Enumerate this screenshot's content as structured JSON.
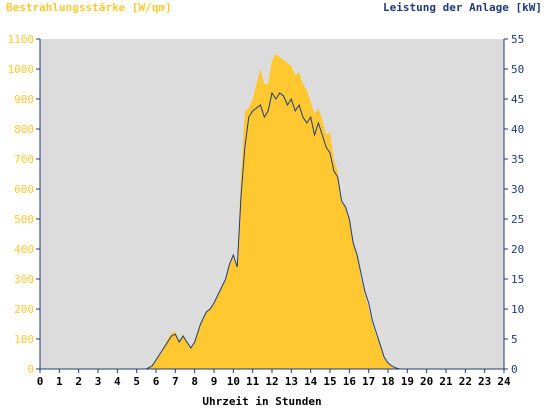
{
  "colors": {
    "irradiance": "#ffc830",
    "power": "#1f3a7a",
    "plot_bg": "#dcdcdc",
    "axis": "#1f3a7a",
    "left_label": "#ffc830",
    "right_label": "#1f3a7a",
    "x_label": "#000000"
  },
  "chart_data": {
    "type": "area",
    "title": "",
    "left_axis_title": "Bestrahlungsstärke [W/qm]",
    "right_axis_title": "Leistung der Anlage [kW]",
    "xlabel": "Uhrzeit in Stunden",
    "xlim": [
      0,
      24
    ],
    "ylim_left": [
      0,
      1100
    ],
    "ylim_right": [
      0,
      55
    ],
    "x_ticks": [
      "0",
      "1",
      "2",
      "3",
      "4",
      "5",
      "6",
      "7",
      "8",
      "9",
      "10",
      "11",
      "12",
      "13",
      "14",
      "15",
      "16",
      "17",
      "18",
      "19",
      "20",
      "21",
      "22",
      "23",
      "24"
    ],
    "y_ticks_left": [
      "0",
      "100",
      "200",
      "300",
      "400",
      "500",
      "600",
      "700",
      "800",
      "900",
      "1000",
      "1100"
    ],
    "y_ticks_right": [
      "0",
      "5",
      "10",
      "15",
      "20",
      "25",
      "30",
      "35",
      "40",
      "45",
      "50",
      "55"
    ],
    "grid": false,
    "series": [
      {
        "name": "Bestrahlungsstärke [W/qm]",
        "axis": "left",
        "style": "filled-area",
        "x": [
          0,
          5.5,
          5.8,
          6.0,
          6.3,
          6.6,
          6.8,
          7.0,
          7.2,
          7.4,
          7.6,
          7.8,
          8.0,
          8.3,
          8.6,
          8.8,
          9.0,
          9.3,
          9.6,
          9.8,
          10.0,
          10.2,
          10.4,
          10.6,
          10.8,
          11.0,
          11.2,
          11.4,
          11.6,
          11.8,
          12.0,
          12.2,
          12.4,
          12.6,
          12.8,
          13.0,
          13.2,
          13.4,
          13.6,
          13.8,
          14.0,
          14.2,
          14.4,
          14.6,
          14.8,
          15.0,
          15.2,
          15.4,
          15.6,
          15.8,
          16.0,
          16.2,
          16.4,
          16.6,
          16.8,
          17.0,
          17.2,
          17.4,
          17.6,
          17.8,
          18.0,
          18.2,
          18.4,
          18.6,
          18.8,
          19.0,
          19.2,
          19.5,
          20,
          24
        ],
        "values": [
          0,
          0,
          15,
          30,
          60,
          100,
          120,
          125,
          95,
          115,
          90,
          70,
          95,
          150,
          190,
          200,
          220,
          260,
          300,
          350,
          380,
          340,
          650,
          860,
          870,
          900,
          950,
          1000,
          950,
          950,
          1030,
          1050,
          1040,
          1030,
          1020,
          1010,
          980,
          990,
          950,
          930,
          890,
          850,
          870,
          830,
          780,
          790,
          700,
          660,
          560,
          540,
          500,
          420,
          380,
          300,
          250,
          200,
          150,
          110,
          80,
          40,
          20,
          8,
          2,
          0,
          0,
          0,
          0,
          0,
          0,
          0
        ],
        "values_note_unit": "W/qm"
      },
      {
        "name": "Leistung der Anlage [kW]",
        "axis": "right",
        "style": "line",
        "x": [
          0,
          5.5,
          5.8,
          6.0,
          6.3,
          6.6,
          6.8,
          7.0,
          7.2,
          7.4,
          7.6,
          7.8,
          8.0,
          8.3,
          8.6,
          8.8,
          9.0,
          9.3,
          9.6,
          9.8,
          10.0,
          10.2,
          10.4,
          10.6,
          10.8,
          11.0,
          11.2,
          11.4,
          11.6,
          11.8,
          12.0,
          12.2,
          12.4,
          12.6,
          12.8,
          13.0,
          13.2,
          13.4,
          13.6,
          13.8,
          14.0,
          14.2,
          14.4,
          14.6,
          14.8,
          15.0,
          15.2,
          15.4,
          15.6,
          15.8,
          16.0,
          16.2,
          16.4,
          16.6,
          16.8,
          17.0,
          17.2,
          17.4,
          17.6,
          17.8,
          18.0,
          18.2,
          18.4,
          18.6,
          18.8,
          19.0,
          19.2,
          19.5,
          20,
          24
        ],
        "values": [
          0,
          0,
          0.5,
          1.5,
          3,
          4.5,
          5.5,
          5.8,
          4.5,
          5.5,
          4.5,
          3.5,
          4.5,
          7.5,
          9.5,
          10,
          11,
          13,
          15,
          17.5,
          19,
          17,
          29,
          37,
          42,
          43,
          43.5,
          44,
          42,
          43,
          46,
          45,
          46,
          45.5,
          44,
          45,
          43,
          44,
          42,
          41,
          42,
          39,
          41,
          39,
          37,
          36,
          33,
          32,
          28,
          27,
          25,
          21,
          19,
          16,
          13,
          11,
          8,
          6,
          4,
          2,
          1,
          0.5,
          0.2,
          0,
          0,
          0,
          0,
          0,
          0,
          0
        ]
      }
    ]
  }
}
